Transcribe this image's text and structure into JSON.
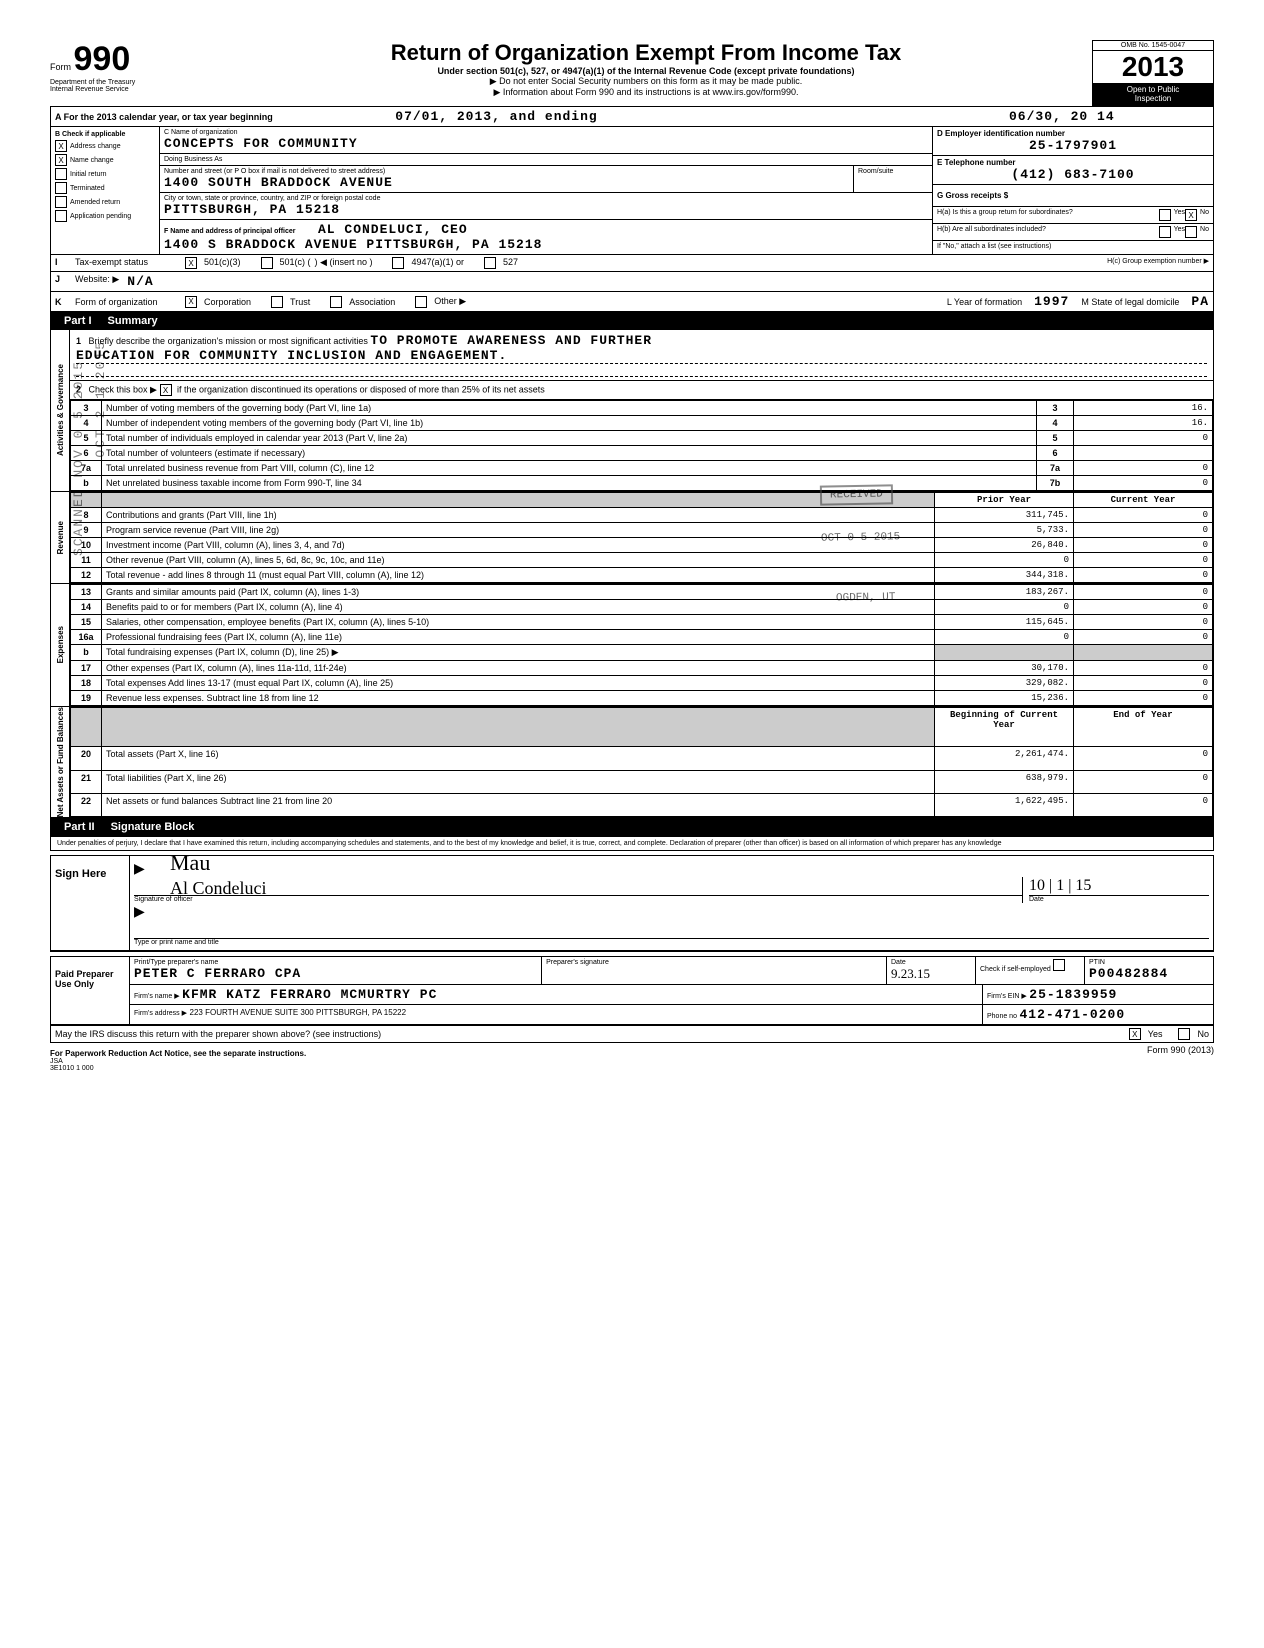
{
  "header": {
    "form_word": "Form",
    "form_num": "990",
    "dept": "Department of the Treasury",
    "irs": "Internal Revenue Service",
    "title": "Return of Organization Exempt From Income Tax",
    "subtitle": "Under section 501(c), 527, or 4947(a)(1) of the Internal Revenue Code (except private foundations)",
    "ssn_note": "▶ Do not enter Social Security numbers on this form as it may be made public.",
    "info_note": "▶ Information about Form 990 and its instructions is at www.irs.gov/form990.",
    "omb": "OMB No. 1545-0047",
    "year": "2013",
    "open": "Open to Public",
    "inspection": "Inspection"
  },
  "period": {
    "label_a": "A For the 2013 calendar year, or tax year beginning",
    "begin": "07/01, 2013, and ending",
    "end": "06/30, 20 14"
  },
  "blockB": {
    "header": "B Check if applicable",
    "items": [
      {
        "checked": true,
        "label": "Address change"
      },
      {
        "checked": true,
        "label": "Name change"
      },
      {
        "checked": false,
        "label": "Initial return"
      },
      {
        "checked": false,
        "label": "Terminated"
      },
      {
        "checked": false,
        "label": "Amended return"
      },
      {
        "checked": false,
        "label": "Application pending"
      }
    ]
  },
  "blockC": {
    "c_label": "C Name of organization",
    "name": "CONCEPTS FOR COMMUNITY",
    "dba_label": "Doing Business As",
    "addr_label": "Number and street (or P O box if mail is not delivered to street address)",
    "room_label": "Room/suite",
    "address": "1400 SOUTH BRADDOCK AVENUE",
    "city_label": "City or town, state or province, country, and ZIP or foreign postal code",
    "city": "PITTSBURGH, PA 15218",
    "f_label": "F Name and address of principal officer",
    "officer": "AL CONDELUCI, CEO",
    "officer_addr": "1400 S BRADDOCK AVENUE PITTSBURGH, PA 15218"
  },
  "blockD": {
    "d_label": "D  Employer identification number",
    "ein": "25-1797901",
    "e_label": "E  Telephone number",
    "phone": "(412) 683-7100",
    "g_label": "G  Gross receipts $",
    "ha_label": "H(a)  Is this a group return for subordinates?",
    "hb_label": "H(b)  Are all subordinates included?",
    "yes": "Yes",
    "no": "No",
    "ha_x": "X",
    "hb_attach": "If \"No,\" attach a list (see instructions)",
    "hc_label": "H(c)  Group exemption number ▶"
  },
  "rowI": {
    "label": "I",
    "text": "Tax-exempt status",
    "c501c3": "501(c)(3)",
    "c501c": "501(c) (",
    "insert": ") ◀  (insert no )",
    "c4947": "4947(a)(1) or",
    "c527": "527",
    "x": "X"
  },
  "rowJ": {
    "label": "J",
    "text": "Website: ▶",
    "value": "N/A"
  },
  "rowK": {
    "label": "K",
    "text": "Form of organization",
    "corp": "Corporation",
    "trust": "Trust",
    "assoc": "Association",
    "other": "Other ▶",
    "x": "X",
    "l_label": "L Year of formation",
    "l_year": "1997",
    "m_label": "M State of legal domicile",
    "m_state": "PA"
  },
  "part1": {
    "label": "Part I",
    "title": "Summary"
  },
  "summary": {
    "line1_label": "Briefly describe the organization's mission or most significant activities",
    "line1_text": "TO PROMOTE AWARENESS AND FURTHER",
    "line1_cont": "EDUCATION FOR COMMUNITY INCLUSION AND ENGAGEMENT.",
    "line2": "Check this box ▶",
    "line2_x": "X",
    "line2_rest": "if the organization discontinued its operations or disposed of more than 25% of its net assets",
    "prior_year": "Prior Year",
    "current_year": "Current Year",
    "beg_year": "Beginning of Current Year",
    "end_year": "End of Year",
    "rows_top": [
      {
        "n": "3",
        "desc": "Number of voting members of the governing body (Part VI, line 1a)",
        "box": "3",
        "val": "16."
      },
      {
        "n": "4",
        "desc": "Number of independent voting members of the governing body (Part VI, line 1b)",
        "box": "4",
        "val": "16."
      },
      {
        "n": "5",
        "desc": "Total number of individuals employed in calendar year 2013 (Part V, line 2a)",
        "box": "5",
        "val": "0"
      },
      {
        "n": "6",
        "desc": "Total number of volunteers (estimate if necessary)",
        "box": "6",
        "val": ""
      },
      {
        "n": "7a",
        "desc": "Total unrelated business revenue from Part VIII, column (C), line 12",
        "box": "7a",
        "val": "0"
      },
      {
        "n": "b",
        "desc": "Net unrelated business taxable income from Form 990-T, line 34",
        "box": "7b",
        "val": "0"
      }
    ],
    "rows_rev": [
      {
        "n": "8",
        "desc": "Contributions and grants (Part VIII, line 1h)",
        "py": "311,745.",
        "cy": "0"
      },
      {
        "n": "9",
        "desc": "Program service revenue (Part VIII, line 2g)",
        "py": "5,733.",
        "cy": "0"
      },
      {
        "n": "10",
        "desc": "Investment income (Part VIII, column (A), lines 3, 4, and 7d)",
        "py": "26,840.",
        "cy": "0"
      },
      {
        "n": "11",
        "desc": "Other revenue (Part VIII, column (A), lines 5, 6d, 8c, 9c, 10c, and 11e)",
        "py": "0",
        "cy": "0"
      },
      {
        "n": "12",
        "desc": "Total revenue - add lines 8 through 11 (must equal Part VIII, column (A), line 12)",
        "py": "344,318.",
        "cy": "0"
      }
    ],
    "rows_exp": [
      {
        "n": "13",
        "desc": "Grants and similar amounts paid (Part IX, column (A), lines 1-3)",
        "py": "183,267.",
        "cy": "0"
      },
      {
        "n": "14",
        "desc": "Benefits paid to or for members (Part IX, column (A), line 4)",
        "py": "0",
        "cy": "0"
      },
      {
        "n": "15",
        "desc": "Salaries, other compensation, employee benefits (Part IX, column (A), lines 5-10)",
        "py": "115,645.",
        "cy": "0"
      },
      {
        "n": "16a",
        "desc": "Professional fundraising fees (Part IX, column (A), line 11e)",
        "py": "0",
        "cy": "0"
      },
      {
        "n": "b",
        "desc": "Total fundraising expenses (Part IX, column (D), line 25) ▶",
        "py": "",
        "cy": ""
      },
      {
        "n": "17",
        "desc": "Other expenses (Part IX, column (A), lines 11a-11d, 11f-24e)",
        "py": "30,170.",
        "cy": "0"
      },
      {
        "n": "18",
        "desc": "Total expenses  Add lines 13-17 (must equal Part IX, column (A), line 25)",
        "py": "329,082.",
        "cy": "0"
      },
      {
        "n": "19",
        "desc": "Revenue less expenses. Subtract line 18 from line 12",
        "py": "15,236.",
        "cy": "0"
      }
    ],
    "rows_net": [
      {
        "n": "20",
        "desc": "Total assets (Part X, line 16)",
        "py": "2,261,474.",
        "cy": "0"
      },
      {
        "n": "21",
        "desc": "Total liabilities (Part X, line 26)",
        "py": "638,979.",
        "cy": "0"
      },
      {
        "n": "22",
        "desc": "Net assets or fund balances  Subtract line 21 from line 20",
        "py": "1,622,495.",
        "cy": "0"
      }
    ],
    "vside_gov": "Activities & Governance",
    "vside_rev": "Revenue",
    "vside_exp": "Expenses",
    "vside_net": "Net Assets or Fund Balances"
  },
  "part2": {
    "label": "Part II",
    "title": "Signature Block",
    "perjury": "Under penalties of perjury, I declare that I have examined this return, including accompanying schedules and statements, and to the best of my knowledge and belief, it is true, correct, and complete. Declaration of preparer (other than officer) is based on all information of which preparer has any knowledge",
    "sign_here": "Sign Here",
    "sig_officer": "Signature of officer",
    "date_label": "Date",
    "type_name": "Type or print name and title",
    "officer_sig": "Mau",
    "officer_name": "Al Condeluci",
    "sig_date": "10 | 1 | 15"
  },
  "preparer": {
    "left": "Paid Preparer Use Only",
    "print_label": "Print/Type preparer's name",
    "name": "PETER C FERRARO CPA",
    "sig_label": "Preparer's signature",
    "date_label": "Date",
    "date": "9.23.15",
    "check_label": "Check        if self-employed",
    "ptin_label": "PTIN",
    "ptin": "P00482884",
    "firm_label": "Firm's name ▶",
    "firm": "KFMR KATZ FERRARO MCMURTRY PC",
    "ein_label": "Firm's EIN ▶",
    "ein": "25-1839959",
    "addr_label": "Firm's address ▶",
    "addr": "223 FOURTH AVENUE  SUITE 300 PITTSBURGH, PA 15222",
    "phone_label": "Phone no",
    "phone": "412-471-0200"
  },
  "footer": {
    "discuss": "May the IRS discuss this return with the preparer shown above? (see instructions)",
    "yes": "Yes",
    "no": "No",
    "x": "X",
    "paperwork": "For Paperwork Reduction Act Notice, see the separate instructions.",
    "form": "Form 990 (2013)",
    "jsa": "JSA",
    "code": "3E1010 1 000"
  },
  "stamps": {
    "received": "RECEIVED",
    "oct": "OCT 0 5 2015",
    "ogden": "OGDEN, UT",
    "scanned": "SCANNED NOV 0 5 2015",
    "oct21": "OCT 2 1 2015"
  }
}
